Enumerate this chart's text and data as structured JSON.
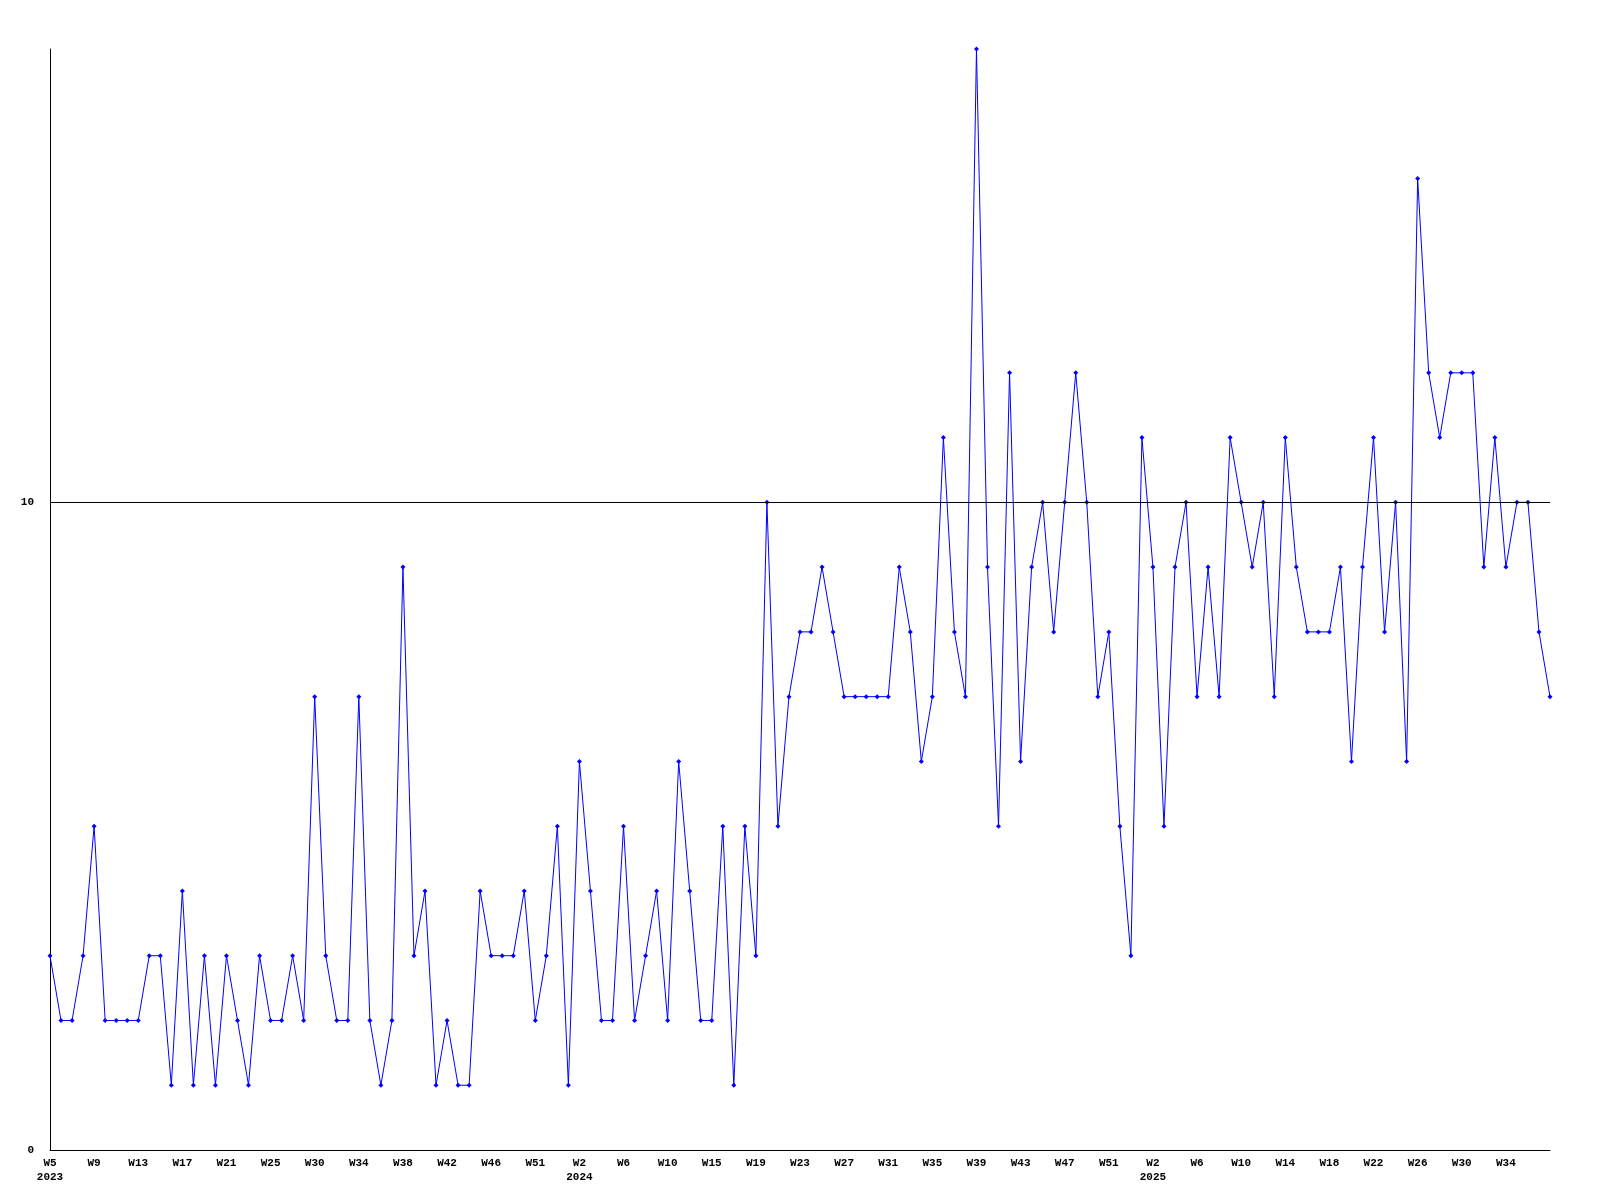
{
  "chart_data": {
    "type": "line",
    "categories": [
      "W5\n2023",
      null,
      null,
      null,
      "W9",
      null,
      null,
      null,
      "W13",
      null,
      null,
      null,
      "W17",
      null,
      null,
      null,
      "W21",
      null,
      null,
      null,
      "W25",
      null,
      null,
      null,
      "W30",
      null,
      null,
      null,
      "W34",
      null,
      null,
      null,
      "W38",
      null,
      null,
      null,
      "W42",
      null,
      null,
      null,
      "W46",
      null,
      null,
      null,
      "W51",
      null,
      null,
      null,
      "W2\n2024",
      null,
      null,
      null,
      "W6",
      null,
      null,
      null,
      "W10",
      null,
      null,
      null,
      "W15",
      null,
      null,
      null,
      "W19",
      null,
      null,
      null,
      "W23",
      null,
      null,
      null,
      "W27",
      null,
      null,
      null,
      "W31",
      null,
      null,
      null,
      "W35",
      null,
      null,
      null,
      "W39",
      null,
      null,
      null,
      "W43",
      null,
      null,
      null,
      "W47",
      null,
      null,
      null,
      "W51",
      null,
      null,
      null,
      "W2\n2025",
      null,
      null,
      null,
      "W6",
      null,
      null,
      null,
      "W10",
      null,
      null,
      null,
      "W14",
      null,
      null,
      null,
      "W18",
      null,
      null,
      null,
      "W22",
      null,
      null,
      null,
      "W26",
      null,
      null,
      null,
      "W30",
      null,
      null,
      null,
      "W34",
      null,
      null,
      null,
      null
    ],
    "series": [
      {
        "color": "#0000ff",
        "values": [
          3,
          2,
          2,
          3,
          5,
          2,
          2,
          2,
          2,
          3,
          3,
          1,
          4,
          1,
          3,
          1,
          3,
          2,
          1,
          3,
          2,
          2,
          3,
          2,
          7,
          3,
          2,
          2,
          7,
          2,
          1,
          2,
          9,
          3,
          4,
          1,
          2,
          1,
          1,
          4,
          3,
          3,
          3,
          4,
          2,
          3,
          5,
          1,
          6,
          4,
          2,
          2,
          5,
          2,
          3,
          4,
          2,
          6,
          4,
          2,
          2,
          5,
          1,
          5,
          3,
          10,
          5,
          7,
          8,
          8,
          9,
          8,
          7,
          7,
          7,
          7,
          7,
          9,
          8,
          6,
          7,
          11,
          8,
          7,
          17,
          9,
          5,
          12,
          6,
          9,
          10,
          8,
          10,
          12,
          10,
          7,
          8,
          5,
          3,
          11,
          9,
          5,
          9,
          10,
          7,
          9,
          7,
          11,
          10,
          9,
          10,
          7,
          11,
          9,
          8,
          8,
          8,
          9,
          6,
          9,
          11,
          8,
          10,
          6,
          15,
          12,
          11,
          12,
          12,
          12,
          9,
          11,
          9,
          10,
          10,
          8,
          7
        ]
      }
    ],
    "ylim": [
      0,
      17
    ],
    "yticks": [
      0,
      10
    ],
    "grid": "y",
    "marker": "diamond",
    "line_style": "solid"
  }
}
